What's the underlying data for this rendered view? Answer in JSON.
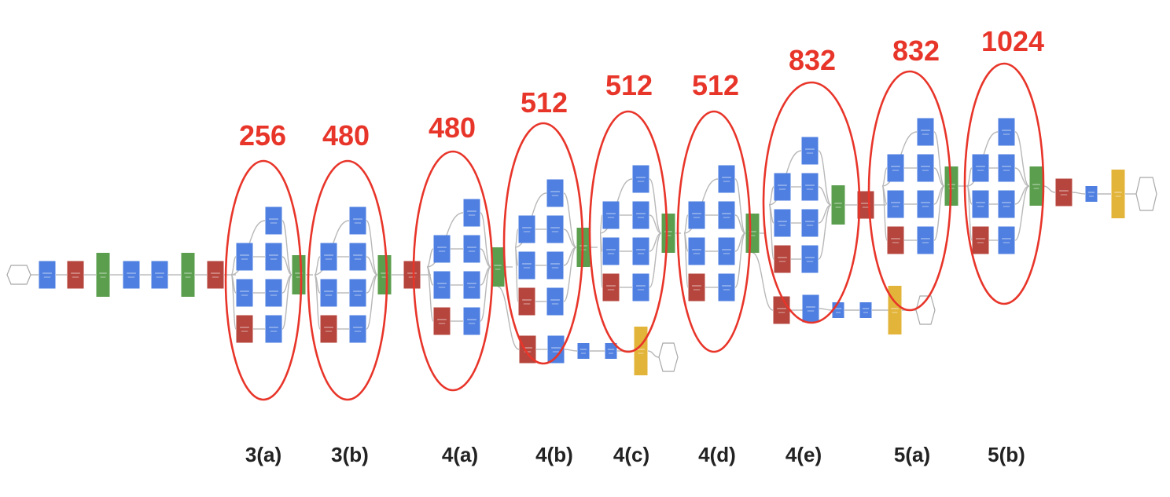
{
  "colors": {
    "conv": "#4f7fe0",
    "pool": "#b5453d",
    "concat": "#5b9e4e",
    "softmax": "#e3b43a",
    "ring": "#e8352a",
    "edge": "#b8b8b8",
    "io": "#ffffff"
  },
  "modules": [
    {
      "id": "3a",
      "stage": "3(a)",
      "channels": "256"
    },
    {
      "id": "3b",
      "stage": "3(b)",
      "channels": "480"
    },
    {
      "id": "4a",
      "stage": "4(a)",
      "channels": "480"
    },
    {
      "id": "4b",
      "stage": "4(b)",
      "channels": "512"
    },
    {
      "id": "4c",
      "stage": "4(c)",
      "channels": "512"
    },
    {
      "id": "4d",
      "stage": "4(d)",
      "channels": "512"
    },
    {
      "id": "4e",
      "stage": "4(e)",
      "channels": "832"
    },
    {
      "id": "5a",
      "stage": "5(a)",
      "channels": "832"
    },
    {
      "id": "5b",
      "stage": "5(b)",
      "channels": "1024"
    }
  ]
}
